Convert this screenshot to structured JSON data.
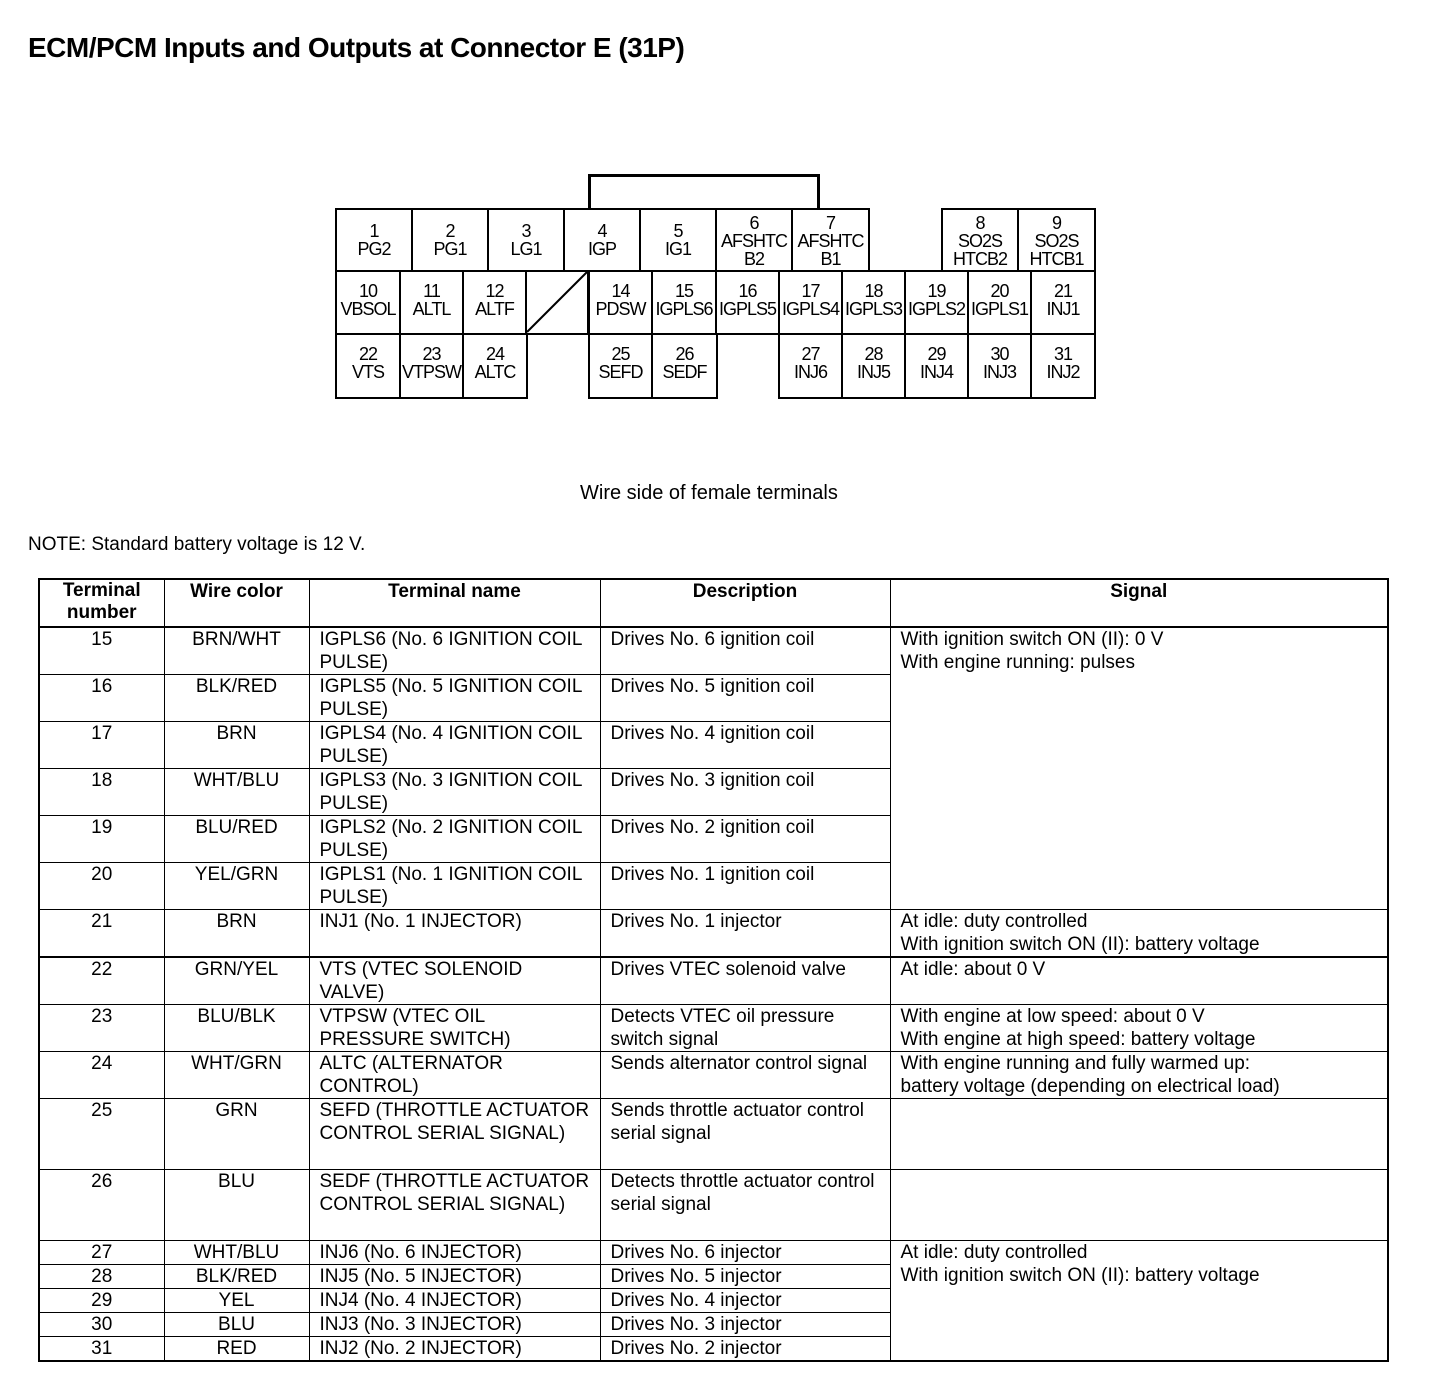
{
  "title": "ECM/PCM Inputs and Outputs at Connector E (31P)",
  "connector": {
    "caption": "Wire side of female terminals",
    "terminals": [
      {
        "num": "1",
        "name": "PG2"
      },
      {
        "num": "2",
        "name": "PG1"
      },
      {
        "num": "3",
        "name": "LG1"
      },
      {
        "num": "4",
        "name": "IGP"
      },
      {
        "num": "5",
        "name": "IG1"
      },
      {
        "num": "6",
        "name": "AFSHTC B2"
      },
      {
        "num": "7",
        "name": "AFSHTC B1"
      },
      {
        "num": "8",
        "name": "SO2S HTCB2"
      },
      {
        "num": "9",
        "name": "SO2S HTCB1"
      },
      {
        "num": "10",
        "name": "VBSOL"
      },
      {
        "num": "11",
        "name": "ALTL"
      },
      {
        "num": "12",
        "name": "ALTF"
      },
      {
        "num": "14",
        "name": "PDSW"
      },
      {
        "num": "15",
        "name": "IGPLS6"
      },
      {
        "num": "16",
        "name": "IGPLS5"
      },
      {
        "num": "17",
        "name": "IGPLS4"
      },
      {
        "num": "18",
        "name": "IGPLS3"
      },
      {
        "num": "19",
        "name": "IGPLS2"
      },
      {
        "num": "20",
        "name": "IGPLS1"
      },
      {
        "num": "21",
        "name": "INJ1"
      },
      {
        "num": "22",
        "name": "VTS"
      },
      {
        "num": "23",
        "name": "VTPSW"
      },
      {
        "num": "24",
        "name": "ALTC"
      },
      {
        "num": "25",
        "name": "SEFD"
      },
      {
        "num": "26",
        "name": "SEDF"
      },
      {
        "num": "27",
        "name": "INJ6"
      },
      {
        "num": "28",
        "name": "INJ5"
      },
      {
        "num": "29",
        "name": "INJ4"
      },
      {
        "num": "30",
        "name": "INJ3"
      },
      {
        "num": "31",
        "name": "INJ2"
      }
    ]
  },
  "note": "NOTE: Standard battery voltage is 12 V.",
  "table": {
    "headers": [
      "Terminal number",
      "Wire color",
      "Terminal name",
      "Description",
      "Signal"
    ],
    "rows": [
      {
        "t": "15",
        "w": "BRN/WHT",
        "n": "IGPLS6 (No. 6 IGNITION COIL PULSE)",
        "d": "Drives No. 6 ignition coil"
      },
      {
        "t": "16",
        "w": "BLK/RED",
        "n": "IGPLS5 (No. 5 IGNITION COIL PULSE)",
        "d": "Drives No. 5 ignition coil"
      },
      {
        "t": "17",
        "w": "BRN",
        "n": "IGPLS4 (No. 4 IGNITION COIL PULSE)",
        "d": "Drives No. 4 ignition coil"
      },
      {
        "t": "18",
        "w": "WHT/BLU",
        "n": "IGPLS3 (No. 3 IGNITION COIL PULSE)",
        "d": "Drives No. 3 ignition coil"
      },
      {
        "t": "19",
        "w": "BLU/RED",
        "n": "IGPLS2 (No. 2 IGNITION COIL PULSE)",
        "d": "Drives No. 2 ignition coil"
      },
      {
        "t": "20",
        "w": "YEL/GRN",
        "n": "IGPLS1 (No. 1 IGNITION COIL PULSE)",
        "d": "Drives No. 1 ignition coil"
      },
      {
        "t": "21",
        "w": "BRN",
        "n": "INJ1 (No. 1 INJECTOR)",
        "d": "Drives No. 1 injector"
      },
      {
        "t": "22",
        "w": "GRN/YEL",
        "n": "VTS (VTEC SOLENOID VALVE)",
        "d": "Drives VTEC solenoid valve"
      },
      {
        "t": "23",
        "w": "BLU/BLK",
        "n": "VTPSW (VTEC OIL PRESSURE SWITCH)",
        "d": "Detects VTEC oil pressure switch signal"
      },
      {
        "t": "24",
        "w": "WHT/GRN",
        "n": "ALTC (ALTERNATOR CONTROL)",
        "d": "Sends alternator control signal"
      },
      {
        "t": "25",
        "w": "GRN",
        "n": "SEFD (THROTTLE ACTUATOR CONTROL SERIAL SIGNAL)",
        "d": "Sends throttle actuator control serial signal"
      },
      {
        "t": "26",
        "w": "BLU",
        "n": "SEDF (THROTTLE ACTUATOR CONTROL SERIAL SIGNAL)",
        "d": "Detects throttle actuator control serial signal"
      },
      {
        "t": "27",
        "w": "WHT/BLU",
        "n": "INJ6 (No. 6 INJECTOR)",
        "d": "Drives No. 6 injector"
      },
      {
        "t": "28",
        "w": "BLK/RED",
        "n": "INJ5 (No. 5 INJECTOR)",
        "d": "Drives No. 5 injector"
      },
      {
        "t": "29",
        "w": "YEL",
        "n": "INJ4 (No. 4 INJECTOR)",
        "d": "Drives No. 4 injector"
      },
      {
        "t": "30",
        "w": "BLU",
        "n": "INJ3 (No. 3 INJECTOR)",
        "d": "Drives No. 3 injector"
      },
      {
        "t": "31",
        "w": "RED",
        "n": "INJ2 (No. 2 INJECTOR)",
        "d": "Drives No. 2 injector"
      }
    ],
    "signals": {
      "ign": "With ignition switch ON (II): 0 V\nWith engine running: pulses",
      "inj1": "At idle: duty controlled\nWith ignition switch ON (II): battery voltage",
      "vts": "At idle: about 0 V",
      "vtpsw": "With engine at low speed: about 0 V\nWith engine at high speed: battery voltage",
      "altc": "With engine running and fully warmed up:\nbattery voltage (depending on electrical load)",
      "inj": "At idle: duty controlled\nWith ignition switch ON (II): battery voltage"
    }
  }
}
